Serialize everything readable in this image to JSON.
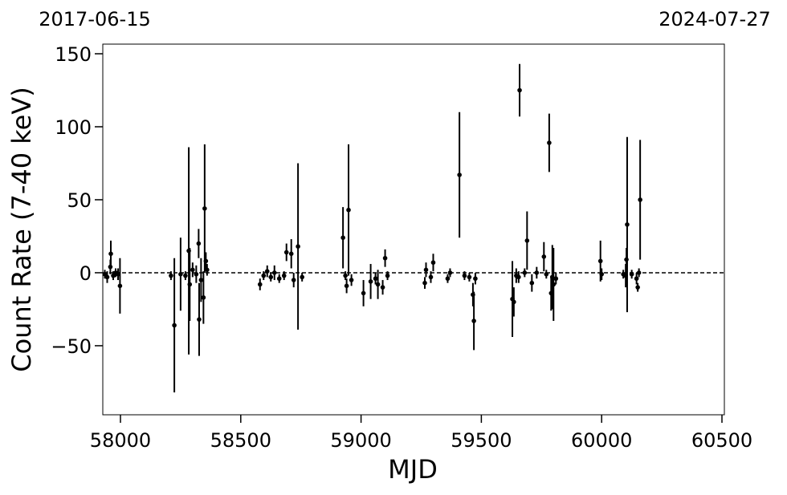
{
  "chart_data": {
    "type": "errorbar",
    "xlabel": "MJD",
    "ylabel": "Count Rate (7-40 keV)",
    "annotations": [
      "2017-06-15",
      "2024-07-27"
    ],
    "color": "#000000",
    "hline": 0,
    "xlim": [
      57926.6,
      60510
    ],
    "xticks": [
      58000,
      58500,
      59000,
      59500,
      60000,
      60500
    ],
    "ylim": [
      -97.3,
      156.6
    ],
    "yticks": [
      {
        "value": -50,
        "label": "−50"
      },
      0,
      50,
      100,
      150
    ],
    "x": [
      57935,
      57945,
      57960,
      57958,
      57970,
      57980,
      57990,
      57998,
      58210,
      58224,
      58250,
      58270,
      58284,
      58288,
      58300,
      58315,
      58325,
      58327,
      58335,
      58345,
      58350,
      58355,
      58360,
      58580,
      58595,
      58610,
      58625,
      58640,
      58660,
      58680,
      58690,
      58710,
      58720,
      58738,
      58755,
      58925,
      58935,
      58940,
      58948,
      58960,
      59010,
      59040,
      59060,
      59070,
      59090,
      59100,
      59110,
      59265,
      59270,
      59290,
      59300,
      59360,
      59370,
      59409,
      59430,
      59450,
      59465,
      59469,
      59475,
      59629,
      59635,
      59645,
      59655,
      59659,
      59680,
      59690,
      59710,
      59730,
      59760,
      59770,
      59782,
      59790,
      59795,
      59800,
      59810,
      59995,
      60000,
      60090,
      60100,
      60103,
      60106,
      60125,
      60145,
      60150,
      60155,
      60160
    ],
    "values": [
      -1,
      -3,
      13,
      4,
      -2,
      0,
      -1,
      -9,
      -2,
      -36,
      -1,
      -2,
      15,
      -8,
      2,
      -1,
      20,
      -32,
      -5,
      -17,
      44,
      8,
      2,
      -8,
      -2,
      1,
      -3,
      0,
      -4,
      -2,
      14,
      13,
      -5,
      18,
      -3,
      24,
      -2,
      -9,
      43,
      -5,
      -14,
      -6,
      -4,
      -8,
      -10,
      10,
      -2,
      -7,
      2,
      -3,
      7,
      -4,
      0,
      67,
      -2,
      -3,
      -15,
      -33,
      -4,
      -18,
      -20,
      -2,
      -3,
      125,
      0,
      22,
      -7,
      0,
      11,
      -1,
      89,
      -14,
      -3,
      -8,
      -4,
      8,
      -1,
      -1,
      -2,
      9,
      33,
      -1,
      -4,
      -10,
      0,
      50
    ],
    "errors": [
      3,
      4,
      9,
      5,
      3,
      3,
      4,
      19,
      3,
      46,
      25,
      3,
      71,
      25,
      5,
      6,
      10,
      25,
      15,
      18,
      44,
      6,
      4,
      4,
      3,
      4,
      3,
      5,
      3,
      3,
      6,
      10,
      5,
      57,
      3,
      21,
      3,
      5,
      45,
      4,
      9,
      12,
      4,
      10,
      5,
      6,
      3,
      4,
      5,
      4,
      6,
      3,
      3,
      43,
      3,
      3,
      8,
      20,
      4,
      26,
      10,
      5,
      4,
      18,
      3,
      20,
      6,
      4,
      10,
      3,
      20,
      12,
      22,
      25,
      4,
      14,
      4,
      3,
      8,
      8,
      60,
      3,
      4,
      3,
      3,
      41
    ]
  }
}
